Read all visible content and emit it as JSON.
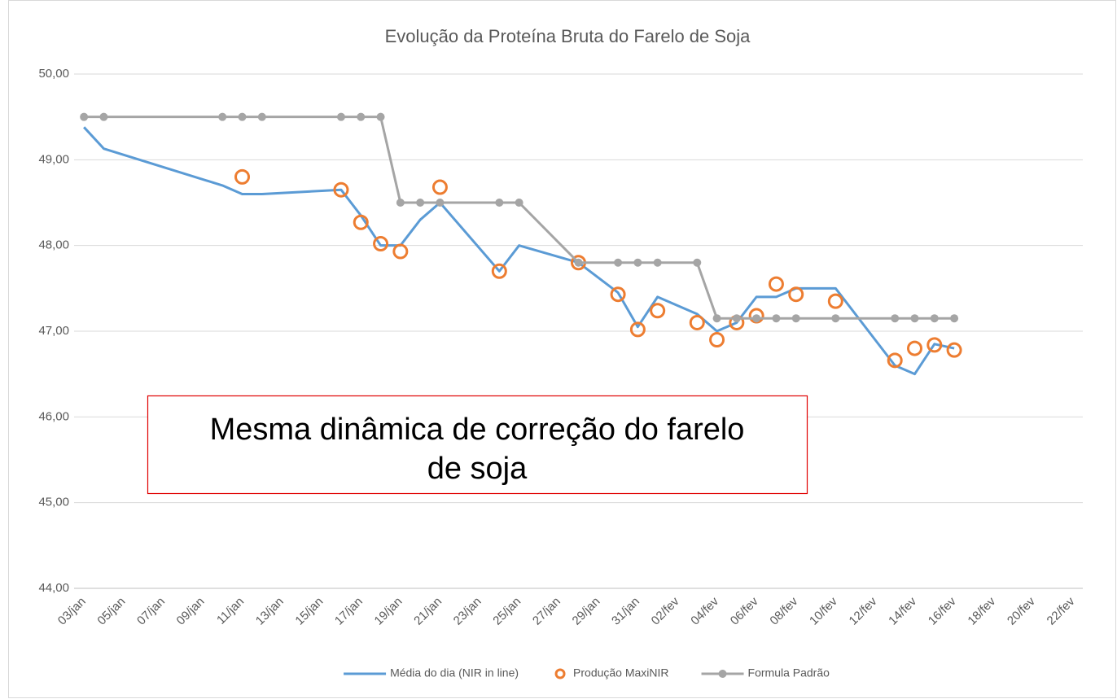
{
  "chart_data": {
    "type": "line",
    "title": "Evolução da Proteína Bruta do Farelo de Soja",
    "annotation_lines": [
      "Mesma dinâmica de correção do farelo",
      "de soja"
    ],
    "categories": [
      "03/jan",
      null,
      "05/jan",
      null,
      "07/jan",
      null,
      "09/jan",
      null,
      "11/jan",
      null,
      "13/jan",
      null,
      "15/jan",
      null,
      "17/jan",
      null,
      "19/jan",
      null,
      "21/jan",
      null,
      "23/jan",
      null,
      "25/jan",
      null,
      "27/jan",
      null,
      "29/jan",
      null,
      "31/jan",
      null,
      "02/fev",
      null,
      "04/fev",
      null,
      "06/fev",
      null,
      "08/fev",
      null,
      "10/fev",
      null,
      "12/fev",
      null,
      "14/fev",
      null,
      "16/fev",
      null,
      "18/fev",
      null,
      "20/fev",
      null,
      "22/fev"
    ],
    "connect_gaps": true,
    "series": [
      {
        "name": "Média do dia (NIR in line)",
        "color": "#5b9bd5",
        "line": true,
        "marker": "none",
        "values": [
          49.38,
          49.13,
          null,
          null,
          null,
          null,
          null,
          48.7,
          48.6,
          48.6,
          null,
          null,
          null,
          48.65,
          48.35,
          48.0,
          48.0,
          48.3,
          48.5,
          null,
          null,
          47.7,
          48.0,
          null,
          null,
          47.8,
          null,
          47.45,
          47.05,
          47.4,
          null,
          47.2,
          47.0,
          47.1,
          47.4,
          47.4,
          47.5,
          null,
          47.5,
          null,
          null,
          46.6,
          46.5,
          46.85,
          46.8,
          null,
          null,
          null,
          null,
          null,
          null
        ]
      },
      {
        "name": "Produção MaxiNIR",
        "color": "#ed7d31",
        "line": false,
        "marker": "circle-open",
        "values": [
          null,
          null,
          null,
          null,
          null,
          null,
          null,
          null,
          48.8,
          null,
          null,
          null,
          null,
          48.65,
          48.27,
          48.02,
          47.93,
          null,
          48.68,
          null,
          null,
          47.7,
          null,
          null,
          null,
          47.8,
          null,
          47.43,
          47.02,
          47.24,
          null,
          47.1,
          46.9,
          47.1,
          47.18,
          47.55,
          47.43,
          null,
          47.35,
          null,
          null,
          46.66,
          46.8,
          46.84,
          46.78,
          null,
          null,
          null,
          null,
          null,
          null
        ]
      },
      {
        "name": "Formula Padrão",
        "color": "#a5a5a5",
        "line": true,
        "marker": "circle",
        "values": [
          49.5,
          49.5,
          null,
          null,
          null,
          null,
          null,
          49.5,
          49.5,
          49.5,
          null,
          null,
          null,
          49.5,
          49.5,
          49.5,
          48.5,
          48.5,
          48.5,
          null,
          null,
          48.5,
          48.5,
          null,
          null,
          47.8,
          null,
          47.8,
          47.8,
          47.8,
          null,
          47.8,
          47.15,
          47.15,
          47.15,
          47.15,
          47.15,
          null,
          47.15,
          null,
          null,
          47.15,
          47.15,
          47.15,
          47.15,
          null,
          null,
          null,
          null,
          null,
          null
        ]
      }
    ],
    "ylim": [
      44,
      50
    ],
    "yticks": [
      {
        "value": 44,
        "label": "44,00"
      },
      {
        "value": 45,
        "label": "45,00"
      },
      {
        "value": 46,
        "label": "46,00"
      },
      {
        "value": 47,
        "label": "47,00"
      },
      {
        "value": 48,
        "label": "48,00"
      },
      {
        "value": 49,
        "label": "49,00"
      },
      {
        "value": 50,
        "label": "50,00"
      }
    ],
    "grid": true,
    "legend": "bottom"
  }
}
